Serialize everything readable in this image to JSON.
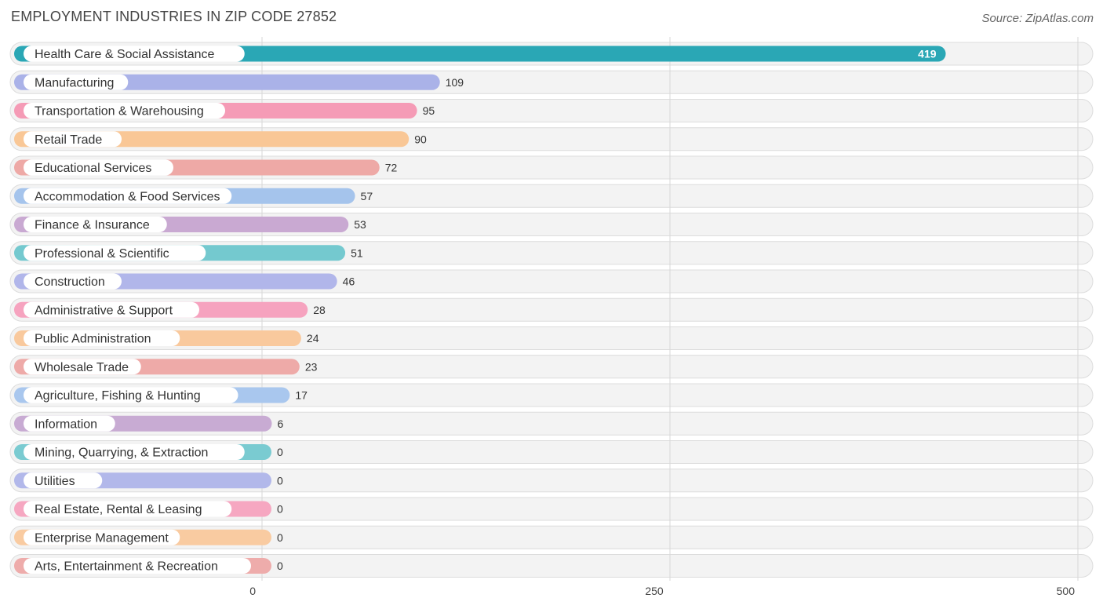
{
  "title": "EMPLOYMENT INDUSTRIES IN ZIP CODE 27852",
  "source": "Source: ZipAtlas.com",
  "chart_data": {
    "type": "bar",
    "orientation": "horizontal",
    "title": "EMPLOYMENT INDUSTRIES IN ZIP CODE 27852",
    "xlim": [
      0,
      500
    ],
    "xticks": [
      0,
      250,
      500
    ],
    "grid": true,
    "categories": [
      "Health Care & Social Assistance",
      "Manufacturing",
      "Transportation & Warehousing",
      "Retail Trade",
      "Educational Services",
      "Accommodation & Food Services",
      "Finance & Insurance",
      "Professional & Scientific",
      "Construction",
      "Administrative & Support",
      "Public Administration",
      "Wholesale Trade",
      "Agriculture, Fishing & Hunting",
      "Information",
      "Mining, Quarrying, & Extraction",
      "Utilities",
      "Real Estate, Rental & Leasing",
      "Enterprise Management",
      "Arts, Entertainment & Recreation"
    ],
    "values": [
      419,
      109,
      95,
      90,
      72,
      57,
      53,
      51,
      46,
      28,
      24,
      23,
      17,
      6,
      0,
      0,
      0,
      0,
      0
    ],
    "colors": [
      "#2aa7b5",
      "#aab2e8",
      "#f59bb6",
      "#f9c796",
      "#eea9a6",
      "#a5c4ec",
      "#c9a9d2",
      "#74c9cf",
      "#b1b6ea",
      "#f6a3bf",
      "#f9c99d",
      "#eeaaa8",
      "#a9c7ee",
      "#c8abd3",
      "#7acbd1",
      "#b2b8ea",
      "#f6a7c1",
      "#f9cba1",
      "#eeacab"
    ]
  }
}
